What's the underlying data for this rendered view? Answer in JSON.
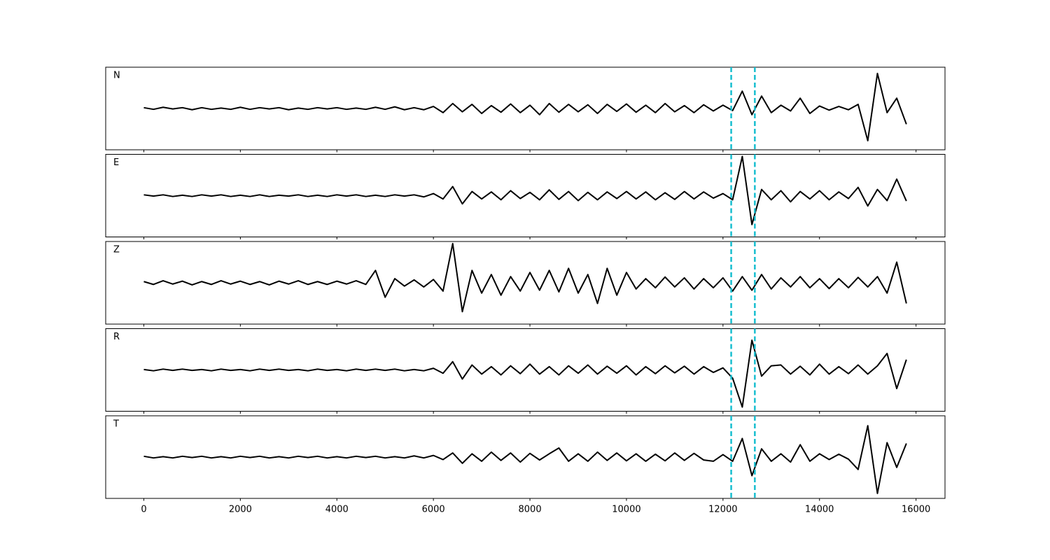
{
  "chart_data": {
    "type": "line",
    "x": [
      0,
      200,
      400,
      600,
      800,
      1000,
      1200,
      1400,
      1600,
      1800,
      2000,
      2200,
      2400,
      2600,
      2800,
      3000,
      3200,
      3400,
      3600,
      3800,
      4000,
      4200,
      4400,
      4600,
      4800,
      5000,
      5200,
      5400,
      5600,
      5800,
      6000,
      6200,
      6400,
      6600,
      6800,
      7000,
      7200,
      7400,
      7600,
      7800,
      8000,
      8200,
      8400,
      8600,
      8800,
      9000,
      9200,
      9400,
      9600,
      9800,
      10000,
      10200,
      10400,
      10600,
      10800,
      11000,
      11200,
      11400,
      11600,
      11800,
      12000,
      12200,
      12400,
      12600,
      12800,
      13000,
      13200,
      13400,
      13600,
      13800,
      14000,
      14200,
      14400,
      14600,
      14800,
      15000,
      15200,
      15400,
      15600,
      15800
    ],
    "series": [
      {
        "name": "N",
        "color": "#000000",
        "values": [
          0.02,
          -0.02,
          0.03,
          -0.01,
          0.02,
          -0.03,
          0.02,
          -0.02,
          0.01,
          -0.02,
          0.03,
          -0.02,
          0.02,
          -0.01,
          0.02,
          -0.03,
          0.01,
          -0.02,
          0.02,
          -0.01,
          0.02,
          -0.02,
          0.01,
          -0.02,
          0.03,
          -0.02,
          0.04,
          -0.03,
          0.02,
          -0.03,
          0.05,
          -0.1,
          0.12,
          -0.08,
          0.1,
          -0.12,
          0.07,
          -0.09,
          0.11,
          -0.1,
          0.08,
          -0.15,
          0.12,
          -0.09,
          0.1,
          -0.08,
          0.09,
          -0.12,
          0.1,
          -0.07,
          0.11,
          -0.09,
          0.08,
          -0.1,
          0.12,
          -0.08,
          0.07,
          -0.1,
          0.09,
          -0.06,
          0.08,
          -0.05,
          0.42,
          -0.15,
          0.3,
          -0.1,
          0.08,
          -0.06,
          0.25,
          -0.12,
          0.06,
          -0.04,
          0.05,
          -0.03,
          0.1,
          -0.78,
          0.85,
          -0.1,
          0.25,
          -0.38
        ]
      },
      {
        "name": "E",
        "color": "#000000",
        "values": [
          0.02,
          -0.01,
          0.02,
          -0.02,
          0.01,
          -0.02,
          0.02,
          -0.01,
          0.02,
          -0.02,
          0.01,
          -0.02,
          0.02,
          -0.02,
          0.01,
          -0.01,
          0.02,
          -0.02,
          0.01,
          -0.02,
          0.02,
          -0.01,
          0.02,
          -0.02,
          0.01,
          -0.02,
          0.02,
          -0.01,
          0.02,
          -0.03,
          0.05,
          -0.08,
          0.22,
          -0.2,
          0.1,
          -0.08,
          0.09,
          -0.1,
          0.12,
          -0.07,
          0.08,
          -0.1,
          0.14,
          -0.09,
          0.1,
          -0.12,
          0.08,
          -0.1,
          0.09,
          -0.07,
          0.1,
          -0.08,
          0.09,
          -0.1,
          0.07,
          -0.09,
          0.1,
          -0.08,
          0.09,
          -0.06,
          0.05,
          -0.1,
          0.95,
          -0.7,
          0.15,
          -0.1,
          0.12,
          -0.15,
          0.1,
          -0.08,
          0.12,
          -0.1,
          0.09,
          -0.07,
          0.2,
          -0.25,
          0.15,
          -0.12,
          0.4,
          -0.13
        ]
      },
      {
        "name": "Z",
        "color": "#000000",
        "values": [
          0.03,
          -0.04,
          0.05,
          -0.03,
          0.04,
          -0.05,
          0.03,
          -0.04,
          0.05,
          -0.03,
          0.04,
          -0.04,
          0.03,
          -0.05,
          0.04,
          -0.03,
          0.05,
          -0.04,
          0.03,
          -0.04,
          0.04,
          -0.03,
          0.05,
          -0.04,
          0.3,
          -0.35,
          0.1,
          -0.08,
          0.07,
          -0.1,
          0.08,
          -0.2,
          0.95,
          -0.7,
          0.3,
          -0.25,
          0.2,
          -0.3,
          0.15,
          -0.2,
          0.25,
          -0.18,
          0.3,
          -0.22,
          0.35,
          -0.25,
          0.2,
          -0.5,
          0.35,
          -0.3,
          0.25,
          -0.15,
          0.1,
          -0.12,
          0.14,
          -0.1,
          0.12,
          -0.15,
          0.1,
          -0.12,
          0.12,
          -0.2,
          0.15,
          -0.18,
          0.2,
          -0.15,
          0.12,
          -0.1,
          0.15,
          -0.12,
          0.1,
          -0.14,
          0.1,
          -0.12,
          0.13,
          -0.1,
          0.15,
          -0.25,
          0.5,
          -0.5
        ]
      },
      {
        "name": "R",
        "color": "#000000",
        "values": [
          0.01,
          -0.02,
          0.02,
          -0.01,
          0.02,
          -0.01,
          0.01,
          -0.02,
          0.02,
          -0.01,
          0.01,
          -0.02,
          0.02,
          -0.01,
          0.02,
          -0.01,
          0.01,
          -0.02,
          0.02,
          -0.01,
          0.01,
          -0.02,
          0.02,
          -0.01,
          0.02,
          -0.01,
          0.02,
          -0.02,
          0.01,
          -0.02,
          0.04,
          -0.08,
          0.2,
          -0.22,
          0.12,
          -0.1,
          0.08,
          -0.12,
          0.1,
          -0.09,
          0.14,
          -0.1,
          0.08,
          -0.12,
          0.1,
          -0.08,
          0.12,
          -0.1,
          0.09,
          -0.08,
          0.1,
          -0.12,
          0.08,
          -0.09,
          0.1,
          -0.07,
          0.09,
          -0.1,
          0.08,
          -0.06,
          0.05,
          -0.2,
          -0.9,
          0.72,
          -0.15,
          0.1,
          0.12,
          -0.1,
          0.09,
          -0.12,
          0.14,
          -0.1,
          0.08,
          -0.09,
          0.12,
          -0.1,
          0.1,
          0.4,
          -0.45,
          0.25
        ]
      },
      {
        "name": "T",
        "color": "#000000",
        "values": [
          0.02,
          -0.02,
          0.01,
          -0.02,
          0.02,
          -0.01,
          0.02,
          -0.02,
          0.01,
          -0.02,
          0.02,
          -0.01,
          0.02,
          -0.02,
          0.01,
          -0.02,
          0.02,
          -0.01,
          0.02,
          -0.02,
          0.01,
          -0.02,
          0.02,
          -0.01,
          0.02,
          -0.02,
          0.01,
          -0.02,
          0.03,
          -0.02,
          0.04,
          -0.06,
          0.1,
          -0.15,
          0.08,
          -0.1,
          0.12,
          -0.08,
          0.1,
          -0.12,
          0.09,
          -0.07,
          0.08,
          0.22,
          -0.1,
          0.08,
          -0.1,
          0.12,
          -0.08,
          0.1,
          -0.09,
          0.08,
          -0.1,
          0.07,
          -0.09,
          0.1,
          -0.08,
          0.09,
          -0.07,
          -0.1,
          0.06,
          -0.1,
          0.45,
          -0.45,
          0.2,
          -0.1,
          0.08,
          -0.12,
          0.3,
          -0.1,
          0.08,
          -0.06,
          0.07,
          -0.05,
          -0.3,
          0.76,
          -0.88,
          0.35,
          -0.25,
          0.33
        ]
      }
    ],
    "vlines": [
      12170,
      12660
    ],
    "vline_color": "#17becf",
    "xlim": [
      -790,
      16600
    ],
    "xticks": [
      0,
      2000,
      4000,
      6000,
      8000,
      10000,
      12000,
      14000,
      16000
    ],
    "ylim": [
      -1,
      1
    ],
    "grid": false
  }
}
